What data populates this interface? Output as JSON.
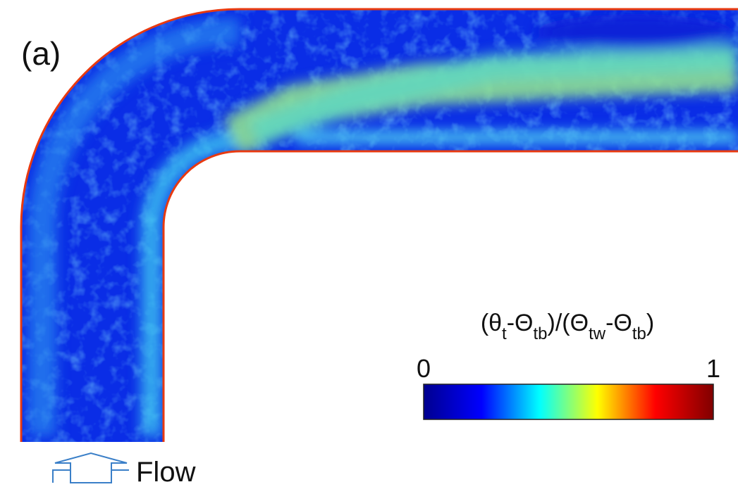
{
  "panel_label": "(a)",
  "colorbar": {
    "label_parts": [
      "(θ",
      "t",
      "-Θ",
      "tb",
      ")/(Θ",
      "tw",
      "-Θ",
      "tb",
      ")"
    ],
    "lim": [
      0,
      1
    ],
    "ticks": [
      0,
      1
    ],
    "colormap": "jet"
  },
  "annotation": "Flow"
}
